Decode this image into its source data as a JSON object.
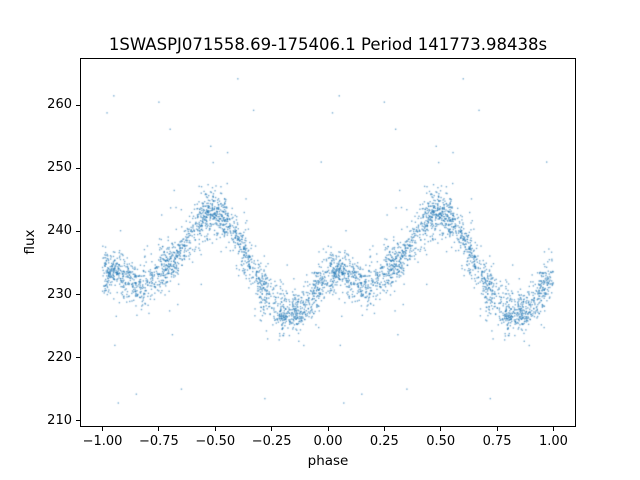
{
  "chart_data": {
    "type": "scatter",
    "title": "1SWASPJ071558.69-175406.1 Period 141773.98438s",
    "xlabel": "phase",
    "ylabel": "flux",
    "xlim": [
      -1.1,
      1.1
    ],
    "ylim": [
      209.0,
      267.5
    ],
    "x_ticks": [
      -1.0,
      -0.75,
      -0.5,
      -0.25,
      0.0,
      0.25,
      0.5,
      0.75,
      1.0
    ],
    "x_tick_labels": [
      "−1.00",
      "−0.75",
      "−0.50",
      "−0.25",
      "0.00",
      "0.25",
      "0.50",
      "0.75",
      "1.00"
    ],
    "y_ticks": [
      210,
      220,
      230,
      240,
      250,
      260
    ],
    "y_tick_labels": [
      "210",
      "220",
      "230",
      "240",
      "250",
      "260"
    ],
    "grid": false,
    "legend": null,
    "background": "#ffffff",
    "marker_color": "#1f77b4",
    "marker_alpha": 0.6,
    "marker_size_px": 1.4,
    "series_description": "Phase-folded light curve scatter; each measurement plotted twice, at phase and phase−1",
    "n_base_points": 2000,
    "seed": 20240715,
    "noise_sigma": 1.7,
    "wide_noise_sigma": 3.8,
    "wide_noise_fraction": 0.1,
    "phase_clumps": [
      0.03,
      0.08,
      0.15,
      0.28,
      0.33,
      0.45,
      0.5,
      0.55,
      0.63,
      0.72,
      0.8,
      0.86,
      0.95
    ],
    "clump_fraction": 0.4,
    "clump_sigma": 0.018,
    "mean_curve": {
      "phase": [
        0.0,
        0.05,
        0.1,
        0.15,
        0.2,
        0.25,
        0.3,
        0.35,
        0.4,
        0.45,
        0.5,
        0.55,
        0.6,
        0.65,
        0.7,
        0.75,
        0.8,
        0.85,
        0.9,
        0.95,
        1.0
      ],
      "flux": [
        233.2,
        233.8,
        233.0,
        231.8,
        232.0,
        233.2,
        234.6,
        237.0,
        240.0,
        242.4,
        243.3,
        242.1,
        239.2,
        235.2,
        231.2,
        228.9,
        227.1,
        226.7,
        227.9,
        230.6,
        233.2
      ]
    },
    "outliers": [
      [
        0.02,
        258.8
      ],
      [
        0.05,
        261.5
      ],
      [
        0.25,
        260.5
      ],
      [
        0.3,
        256.2
      ],
      [
        0.48,
        253.5
      ],
      [
        0.6,
        264.2
      ],
      [
        0.67,
        259.2
      ],
      [
        0.97,
        251.0
      ],
      [
        0.07,
        212.8
      ],
      [
        0.15,
        214.2
      ],
      [
        0.35,
        215.0
      ],
      [
        0.72,
        213.5
      ]
    ]
  }
}
